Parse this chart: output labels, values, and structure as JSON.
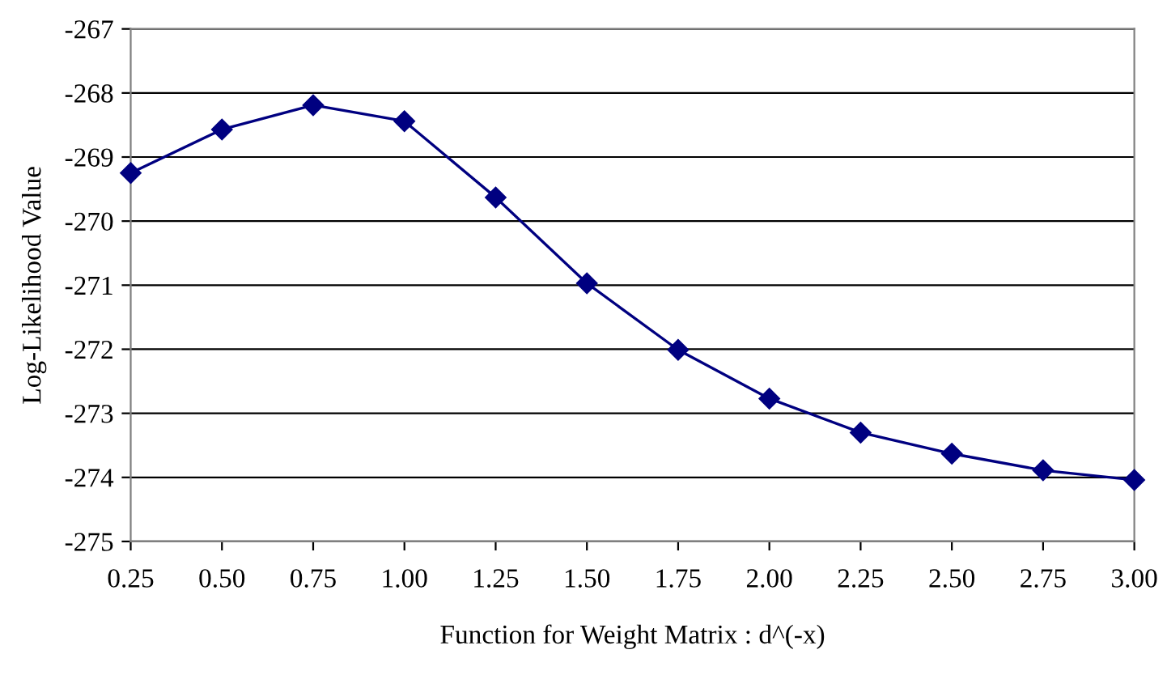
{
  "chart_data": {
    "type": "line",
    "xlabel": "Function for Weight Matrix : d^(-x)",
    "ylabel": "Log-Likelihood Value",
    "x": [
      0.25,
      0.5,
      0.75,
      1.0,
      1.25,
      1.5,
      1.75,
      2.0,
      2.25,
      2.5,
      2.75,
      3.0
    ],
    "series": [
      {
        "color": "#000080",
        "values": [
          -269.25,
          -268.57,
          -268.19,
          -268.44,
          -269.63,
          -270.97,
          -272.01,
          -272.77,
          -273.3,
          -273.63,
          -273.89,
          -274.04
        ]
      }
    ],
    "xlim": [
      0.25,
      3.0
    ],
    "xticks": [
      {
        "value": 0.25,
        "label": "0.25"
      },
      {
        "value": 0.5,
        "label": "0.50"
      },
      {
        "value": 0.75,
        "label": "0.75"
      },
      {
        "value": 1.0,
        "label": "1.00"
      },
      {
        "value": 1.25,
        "label": "1.25"
      },
      {
        "value": 1.5,
        "label": "1.50"
      },
      {
        "value": 1.75,
        "label": "1.75"
      },
      {
        "value": 2.0,
        "label": "2.00"
      },
      {
        "value": 2.25,
        "label": "2.25"
      },
      {
        "value": 2.5,
        "label": "2.50"
      },
      {
        "value": 2.75,
        "label": "2.75"
      },
      {
        "value": 3.0,
        "label": "3.00"
      }
    ],
    "ylim": [
      -275,
      -267
    ],
    "yticks": [
      -275,
      -274,
      -273,
      -272,
      -271,
      -270,
      -269,
      -268,
      -267
    ],
    "grid": "y",
    "marker": "diamond",
    "line_style": "solid"
  }
}
